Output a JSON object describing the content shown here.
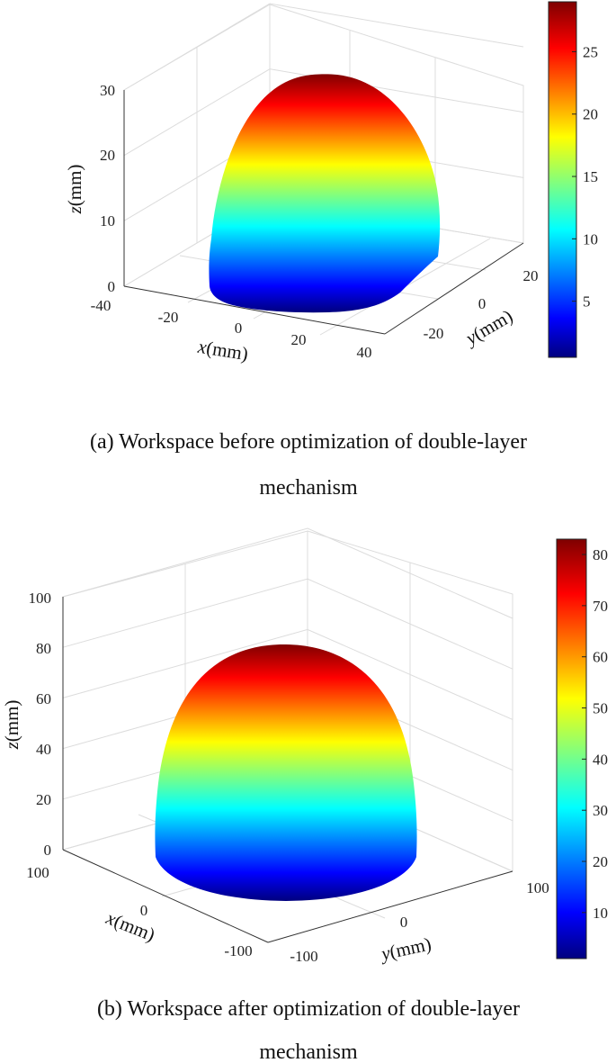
{
  "chart_data": [
    {
      "id": "a",
      "type": "surface3d",
      "surface": "dome",
      "caption_line1": "(a) Workspace before optimization of double-layer",
      "caption_line2": "mechanism",
      "x_label_var": "x",
      "x_label_unit": "(mm)",
      "y_label_var": "y",
      "y_label_unit": "(mm)",
      "z_label_var": "z",
      "z_label_unit": "(mm)",
      "x_ticks": [
        "-40",
        "-20",
        "0",
        "20",
        "40"
      ],
      "y_ticks": [
        "-20",
        "0",
        "20"
      ],
      "z_ticks": [
        "0",
        "10",
        "20",
        "30"
      ],
      "xlim": [
        -40,
        40
      ],
      "ylim": [
        -30,
        30
      ],
      "zlim": [
        0,
        30
      ],
      "dome_height": 28.5,
      "colorbar_ticks": [
        "5",
        "10",
        "15",
        "20",
        "25"
      ],
      "colorbar_range": [
        0.5,
        29
      ],
      "colormap": "jet",
      "grid": true
    },
    {
      "id": "b",
      "type": "surface3d",
      "surface": "dome",
      "caption_line1": "(b) Workspace after optimization of double-layer",
      "caption_line2": "mechanism",
      "x_label_var": "x",
      "x_label_unit": "(mm)",
      "y_label_var": "y",
      "y_label_unit": "(mm)",
      "z_label_var": "z",
      "z_label_unit": "(mm)",
      "x_ticks": [
        "100",
        "0",
        "-100"
      ],
      "y_ticks": [
        "-100",
        "0",
        "100"
      ],
      "z_ticks": [
        "0",
        "20",
        "40",
        "60",
        "80",
        "100"
      ],
      "xlim": [
        -100,
        100
      ],
      "ylim": [
        -100,
        100
      ],
      "zlim": [
        0,
        100
      ],
      "dome_height": 80,
      "colorbar_ticks": [
        "10",
        "20",
        "30",
        "40",
        "50",
        "60",
        "70",
        "80"
      ],
      "colorbar_range": [
        1,
        83
      ],
      "colormap": "jet",
      "grid": true
    }
  ]
}
